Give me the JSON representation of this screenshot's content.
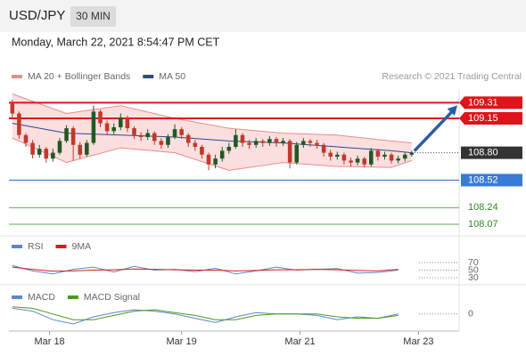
{
  "header": {
    "symbol": "USD/JPY",
    "interval": "30 MIN",
    "datetime": "Monday, March 22, 2021 8:54:47 PM CET"
  },
  "chart_data": [
    {
      "type": "candlestick",
      "copyright": "Research © 2021 Trading Central",
      "up_color": "#1e5a24",
      "down_color": "#c0392b",
      "open": [
        109.3,
        109.2,
        108.98,
        108.9,
        108.78,
        108.84,
        108.74,
        108.8,
        108.92,
        109.05,
        108.88,
        108.78,
        108.9,
        109.22,
        109.1,
        109.02,
        109.06,
        109.16,
        109.05,
        108.98,
        108.96,
        109.0,
        108.92,
        108.88,
        108.96,
        109.04,
        108.98,
        108.9,
        108.86,
        108.78,
        108.68,
        108.74,
        108.82,
        108.86,
        108.98,
        108.9,
        108.88,
        108.92,
        108.9,
        108.94,
        108.9,
        108.92,
        108.7,
        108.88,
        108.92,
        108.9,
        108.88,
        108.8,
        108.76,
        108.78,
        108.72,
        108.7,
        108.74,
        108.68,
        108.82,
        108.76,
        108.78,
        108.72,
        108.74,
        108.78
      ],
      "high": [
        109.34,
        109.22,
        109.0,
        108.93,
        108.88,
        108.86,
        108.84,
        108.95,
        109.08,
        109.07,
        108.91,
        108.93,
        109.28,
        109.24,
        109.13,
        109.1,
        109.2,
        109.18,
        109.07,
        109.01,
        109.04,
        109.02,
        108.95,
        108.99,
        109.09,
        109.06,
        109.0,
        108.93,
        108.88,
        108.8,
        108.78,
        108.86,
        108.9,
        109.04,
        109.0,
        108.93,
        108.95,
        108.94,
        108.97,
        108.96,
        108.95,
        108.94,
        108.91,
        108.95,
        108.94,
        108.93,
        108.9,
        108.83,
        108.81,
        108.8,
        108.75,
        108.77,
        108.76,
        108.85,
        108.84,
        108.81,
        108.8,
        108.77,
        108.8,
        108.82
      ],
      "low": [
        109.16,
        108.94,
        108.86,
        108.74,
        108.75,
        108.7,
        108.71,
        108.78,
        108.9,
        108.72,
        108.74,
        108.76,
        108.88,
        109.06,
        108.98,
        108.99,
        109.03,
        109.01,
        108.94,
        108.92,
        108.93,
        108.88,
        108.84,
        108.85,
        108.94,
        108.94,
        108.86,
        108.82,
        108.74,
        108.62,
        108.64,
        108.71,
        108.79,
        108.84,
        108.86,
        108.84,
        108.85,
        108.86,
        108.87,
        108.86,
        108.87,
        108.64,
        108.68,
        108.85,
        108.86,
        108.84,
        108.76,
        108.72,
        108.73,
        108.68,
        108.66,
        108.67,
        108.65,
        108.66,
        108.72,
        108.73,
        108.69,
        108.69,
        108.71,
        108.76
      ],
      "close": [
        109.2,
        108.98,
        108.9,
        108.78,
        108.84,
        108.74,
        108.8,
        108.92,
        109.05,
        108.88,
        108.78,
        108.9,
        109.22,
        109.1,
        109.02,
        109.06,
        109.16,
        109.05,
        108.98,
        108.96,
        109.0,
        108.92,
        108.88,
        108.96,
        109.04,
        108.98,
        108.9,
        108.86,
        108.78,
        108.68,
        108.74,
        108.82,
        108.86,
        108.98,
        108.9,
        108.88,
        108.92,
        108.9,
        108.94,
        108.9,
        108.92,
        108.7,
        108.88,
        108.92,
        108.9,
        108.88,
        108.8,
        108.76,
        108.78,
        108.72,
        108.7,
        108.74,
        108.68,
        108.82,
        108.76,
        108.78,
        108.72,
        108.74,
        108.78,
        108.8
      ],
      "series": [
        {
          "name": "MA 20 + Bollinger Bands",
          "color": "#f08a8a",
          "x": [
            0,
            8,
            16,
            24,
            32,
            40,
            48,
            56,
            59
          ],
          "upper": [
            109.4,
            109.2,
            109.28,
            109.15,
            109.05,
            109.0,
            108.98,
            108.92,
            108.9
          ],
          "lower": [
            108.95,
            108.7,
            108.85,
            108.8,
            108.62,
            108.7,
            108.66,
            108.65,
            108.72
          ]
        },
        {
          "name": "MA 50",
          "color": "#2b4a8a",
          "x": [
            0,
            8,
            16,
            24,
            32,
            40,
            48,
            56,
            59
          ],
          "values": [
            109.1,
            109.0,
            108.98,
            108.96,
            108.92,
            108.9,
            108.86,
            108.82,
            108.8
          ]
        }
      ],
      "levels": [
        {
          "value": 109.31,
          "label": "109.31",
          "color": "#e0141b",
          "style": "resistance"
        },
        {
          "value": 109.15,
          "label": "109.15",
          "color": "#e0141b",
          "style": "resistance"
        },
        {
          "value": 108.8,
          "label": "108.80",
          "color": "#333333",
          "style": "current"
        },
        {
          "value": 108.52,
          "label": "108.52",
          "color": "#3a7bd5",
          "style": "pivot"
        },
        {
          "value": 108.24,
          "label": "108.24",
          "color": "#2e8b1e",
          "style": "support"
        },
        {
          "value": 108.07,
          "label": "108.07",
          "color": "#2e8b1e",
          "style": "support"
        }
      ],
      "ylim": [
        107.97,
        109.45
      ],
      "xlim": [
        -0.5,
        66
      ],
      "xticks": [
        {
          "value": 5.5,
          "label": "Mar 18"
        },
        {
          "value": 25,
          "label": "Mar 19"
        },
        {
          "value": 42.5,
          "label": "Mar 21"
        },
        {
          "value": 60,
          "label": "Mar 23"
        }
      ]
    },
    {
      "type": "line",
      "series": [
        {
          "name": "RSI",
          "color": "#5a87d0",
          "x": [
            0,
            3,
            6,
            9,
            12,
            15,
            18,
            21,
            24,
            27,
            30,
            33,
            36,
            39,
            42,
            45,
            48,
            51,
            54,
            57
          ],
          "values": [
            62,
            48,
            40,
            52,
            58,
            45,
            60,
            50,
            52,
            46,
            55,
            40,
            48,
            58,
            50,
            52,
            54,
            42,
            44,
            50
          ]
        },
        {
          "name": "9MA",
          "color": "#d81b1b",
          "x": [
            0,
            3,
            6,
            9,
            12,
            15,
            18,
            21,
            24,
            27,
            30,
            33,
            36,
            39,
            42,
            45,
            48,
            51,
            54,
            57
          ],
          "values": [
            58,
            52,
            47,
            48,
            50,
            51,
            53,
            52,
            51,
            50,
            50,
            48,
            49,
            51,
            51,
            52,
            51,
            49,
            48,
            52
          ]
        }
      ],
      "ylim": [
        24,
        82
      ],
      "yticks": [
        70,
        50,
        30
      ],
      "xlim": [
        -0.5,
        66
      ]
    },
    {
      "type": "line",
      "series": [
        {
          "name": "MACD",
          "color": "#5a87d0",
          "x": [
            0,
            3,
            6,
            9,
            12,
            15,
            18,
            21,
            24,
            27,
            30,
            33,
            36,
            39,
            42,
            45,
            48,
            51,
            54,
            57
          ],
          "values": [
            0.04,
            0.02,
            -0.04,
            -0.07,
            -0.02,
            0.01,
            0.03,
            0.02,
            0.0,
            -0.03,
            -0.06,
            -0.02,
            0.01,
            0.0,
            0.0,
            -0.01,
            -0.04,
            -0.02,
            -0.03,
            0.0
          ]
        },
        {
          "name": "MACD Signal",
          "color": "#4a9a1a",
          "x": [
            0,
            3,
            6,
            9,
            12,
            15,
            18,
            21,
            24,
            27,
            30,
            33,
            36,
            39,
            42,
            45,
            48,
            51,
            54,
            57
          ],
          "values": [
            0.05,
            0.04,
            0.0,
            -0.04,
            -0.04,
            -0.01,
            0.02,
            0.03,
            0.01,
            -0.01,
            -0.04,
            -0.04,
            -0.01,
            0.0,
            0.0,
            0.0,
            -0.02,
            -0.03,
            -0.03,
            -0.01
          ]
        }
      ],
      "ylim": [
        -0.12,
        0.08
      ],
      "yticks": [
        0
      ],
      "xlim": [
        -0.5,
        66
      ]
    }
  ]
}
